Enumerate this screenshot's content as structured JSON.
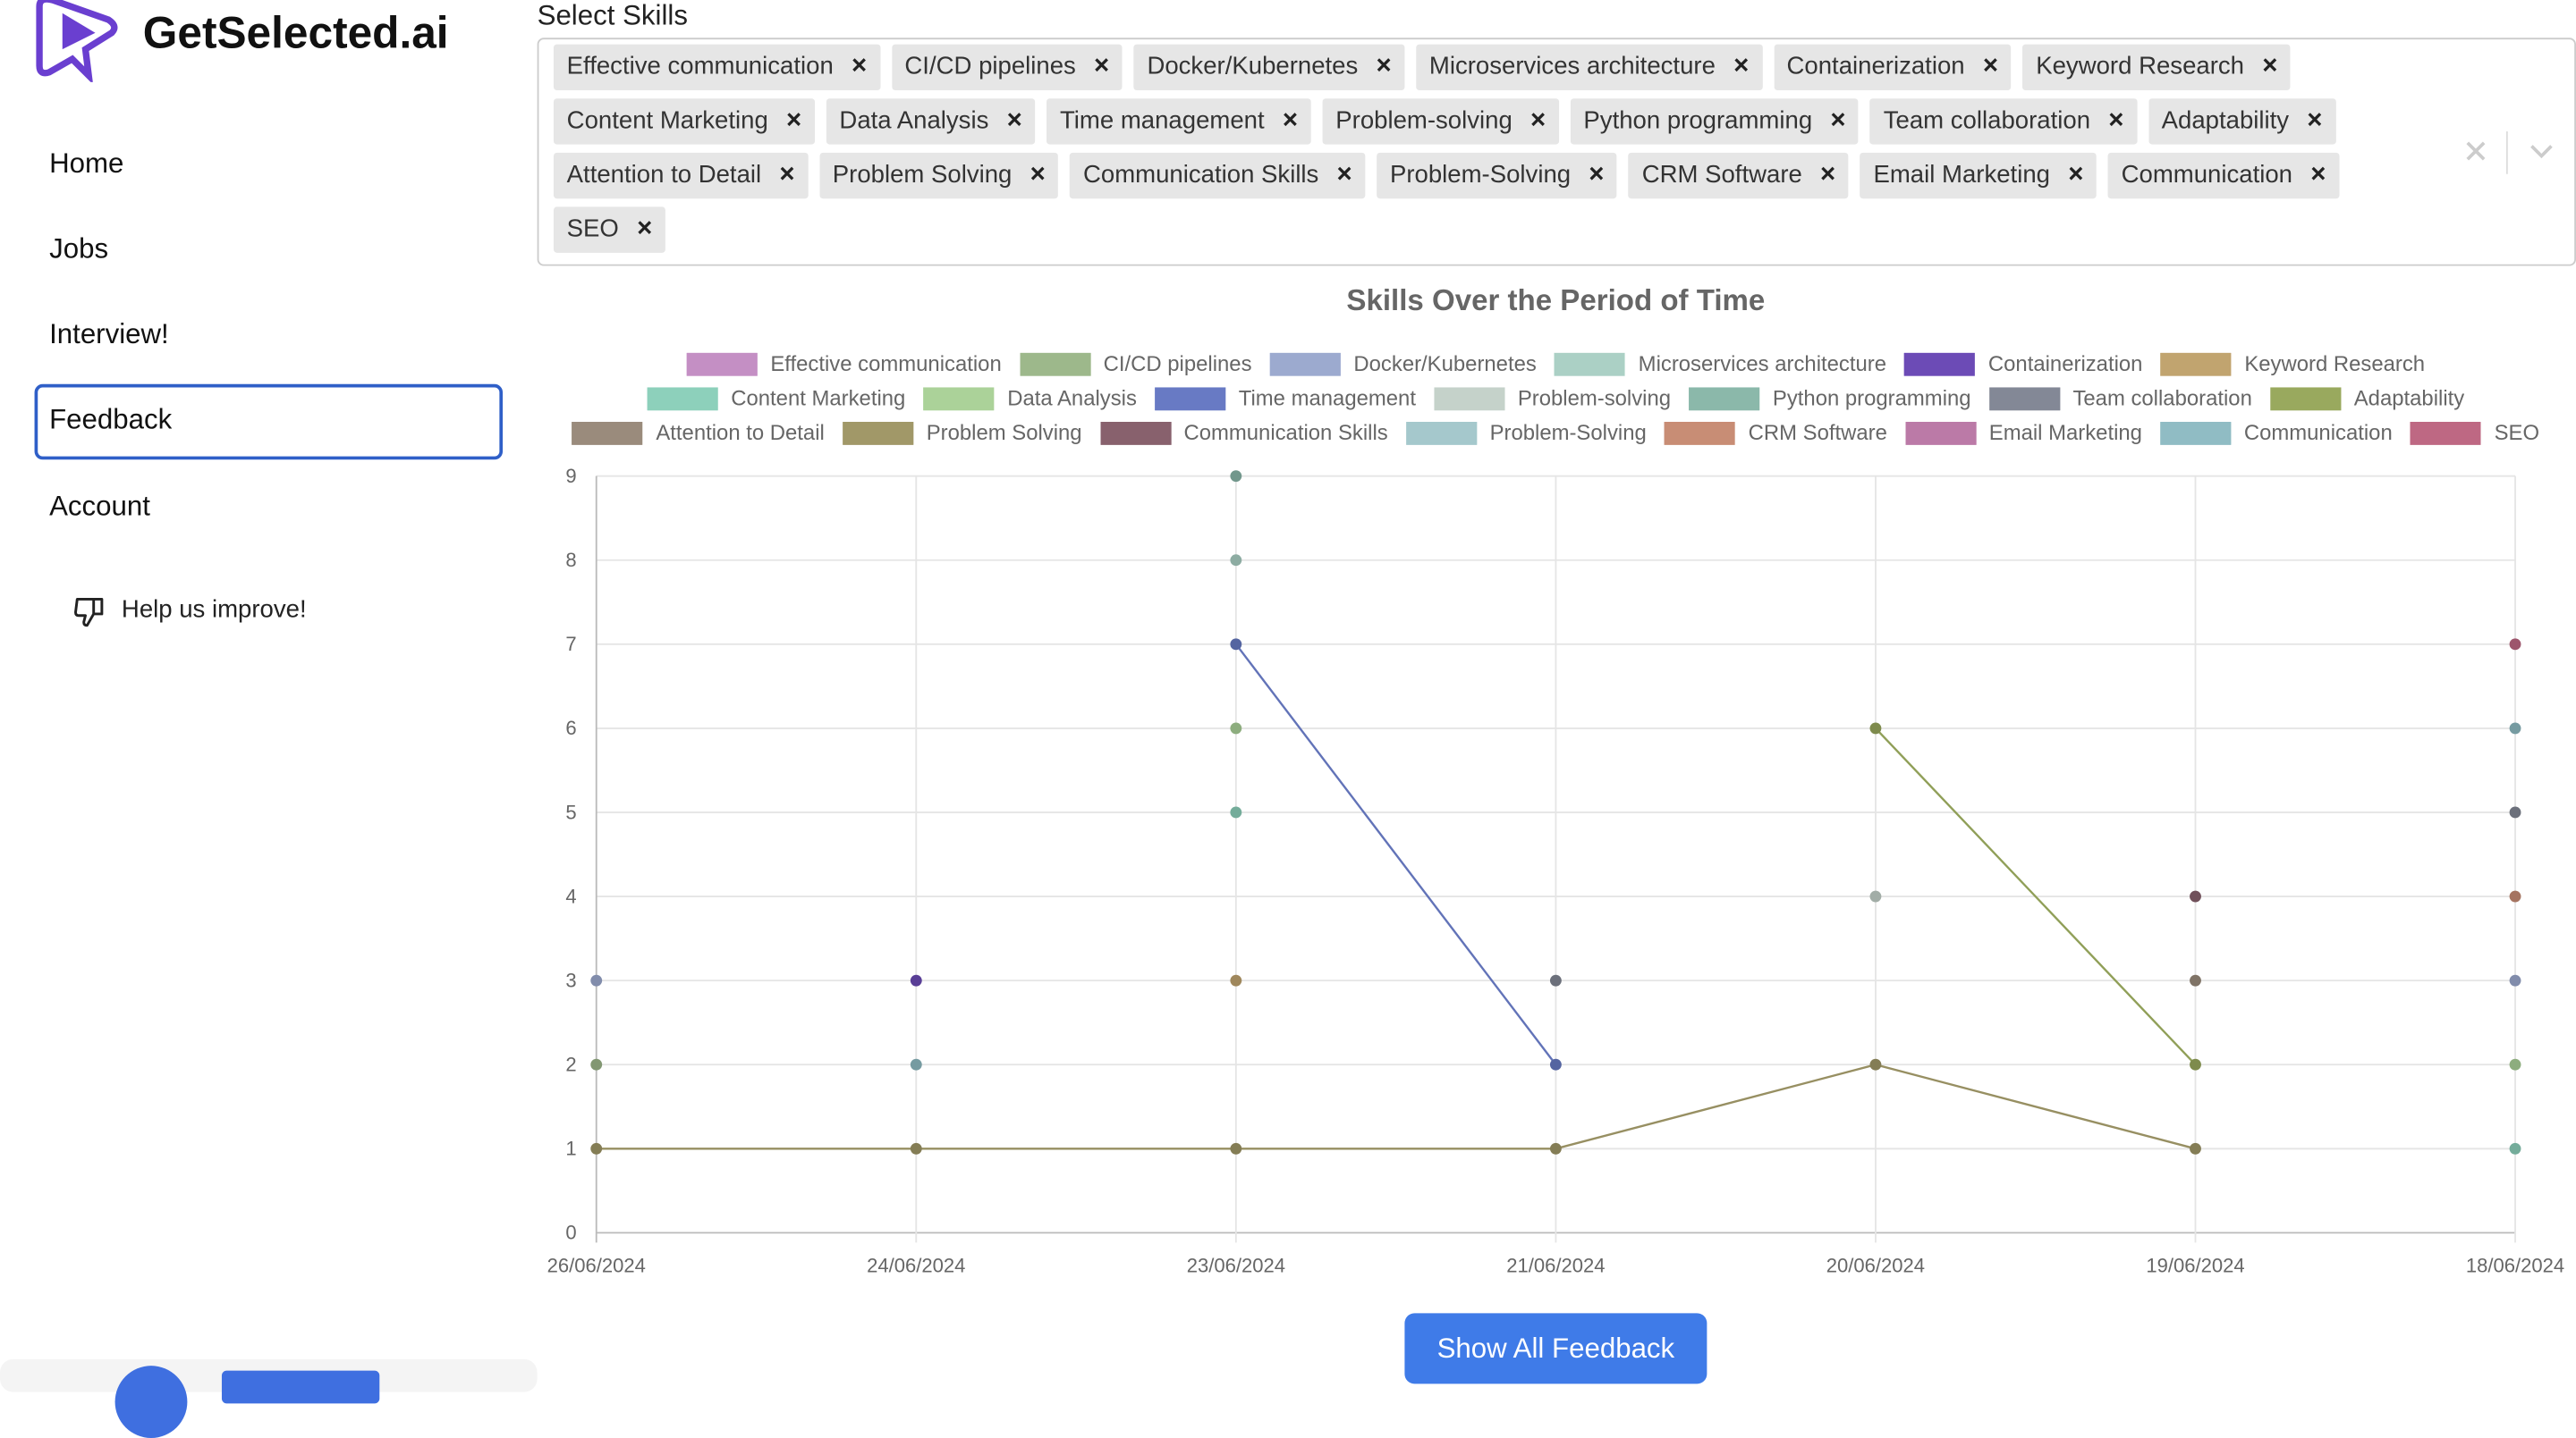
{
  "sidebar": {
    "brand": "GetSelected.ai",
    "nav": [
      "Home",
      "Jobs",
      "Interview!",
      "Feedback",
      "Account"
    ],
    "help": "Help us improve!"
  },
  "skills": {
    "label": "Select Skills",
    "tags": [
      "Effective communication",
      "CI/CD pipelines",
      "Docker/Kubernetes",
      "Microservices architecture",
      "Containerization",
      "Keyword Research",
      "Content Marketing",
      "Data Analysis",
      "Time management",
      "Problem-solving",
      "Python programming",
      "Team collaboration",
      "Adaptability",
      "Attention to Detail",
      "Problem Solving",
      "Communication Skills",
      "Problem-Solving",
      "CRM Software",
      "Email Marketing",
      "Communication",
      "SEO"
    ]
  },
  "chart_data": {
    "type": "line",
    "title": "Skills Over the Period of Time",
    "categories": [
      "26/06/2024",
      "24/06/2024",
      "23/06/2024",
      "21/06/2024",
      "20/06/2024",
      "19/06/2024",
      "18/06/2024"
    ],
    "ylim": [
      0,
      9
    ],
    "yticks": [
      0,
      1,
      2,
      3,
      4,
      5,
      6,
      7,
      8,
      9
    ],
    "grid": true,
    "series": [
      {
        "name": "Effective communication",
        "color": "#e6a8e6",
        "values": [
          null,
          null,
          null,
          null,
          null,
          null,
          null
        ]
      },
      {
        "name": "CI/CD pipelines",
        "color": "#b9d8a3",
        "values": [
          2,
          null,
          null,
          null,
          null,
          null,
          null
        ]
      },
      {
        "name": "Docker/Kubernetes",
        "color": "#b8c8f4",
        "values": [
          3,
          null,
          null,
          null,
          null,
          null,
          3
        ]
      },
      {
        "name": "Microservices architecture",
        "color": "#c9f5e8",
        "values": [
          null,
          null,
          8,
          null,
          null,
          null,
          null
        ]
      },
      {
        "name": "Containerization",
        "color": "#7f58d6",
        "values": [
          null,
          3,
          null,
          null,
          null,
          null,
          null
        ]
      },
      {
        "name": "Keyword Research",
        "color": "#e3c183",
        "values": [
          null,
          null,
          3,
          null,
          null,
          null,
          null
        ]
      },
      {
        "name": "Content Marketing",
        "color": "#a6f5dc",
        "values": [
          null,
          null,
          5,
          null,
          null,
          null,
          1
        ]
      },
      {
        "name": "Data Analysis",
        "color": "#c9f7b4",
        "values": [
          null,
          null,
          6,
          null,
          null,
          null,
          2
        ]
      },
      {
        "name": "Time management",
        "color": "#7a90e6",
        "values": [
          null,
          null,
          7,
          2,
          null,
          null,
          null
        ]
      },
      {
        "name": "Problem-solving",
        "color": "#e8f7ee",
        "values": [
          null,
          null,
          null,
          null,
          4,
          null,
          null
        ]
      },
      {
        "name": "Python programming",
        "color": "#a3d8c8",
        "values": [
          null,
          null,
          9,
          null,
          null,
          null,
          null
        ]
      },
      {
        "name": "Team collaboration",
        "color": "#9aa0b0",
        "values": [
          null,
          null,
          null,
          3,
          null,
          null,
          5
        ]
      },
      {
        "name": "Adaptability",
        "color": "#b4c76e",
        "values": [
          null,
          null,
          null,
          null,
          6,
          2,
          null
        ]
      },
      {
        "name": "Attention to Detail",
        "color": "#b5a492",
        "values": [
          null,
          null,
          null,
          null,
          null,
          3,
          null
        ]
      },
      {
        "name": "Problem Solving",
        "color": "#bdb37a",
        "values": [
          1,
          1,
          1,
          1,
          2,
          1,
          null
        ]
      },
      {
        "name": "Communication Skills",
        "color": "#a07280",
        "values": [
          null,
          null,
          null,
          null,
          null,
          4,
          null
        ]
      },
      {
        "name": "Problem-Solving",
        "color": "#c2ebf0",
        "values": [
          null,
          null,
          null,
          null,
          null,
          null,
          null
        ]
      },
      {
        "name": "CRM Software",
        "color": "#eba68a",
        "values": [
          null,
          null,
          null,
          null,
          null,
          null,
          4
        ]
      },
      {
        "name": "Email Marketing",
        "color": "#dc8fc4",
        "values": [
          null,
          null,
          null,
          null,
          null,
          null,
          null
        ]
      },
      {
        "name": "Communication",
        "color": "#a9dde6",
        "values": [
          null,
          2,
          null,
          null,
          null,
          null,
          6
        ]
      },
      {
        "name": "SEO",
        "color": "#e07a9a",
        "values": [
          null,
          null,
          null,
          null,
          null,
          null,
          7
        ]
      }
    ]
  },
  "button": "Show All Feedback"
}
